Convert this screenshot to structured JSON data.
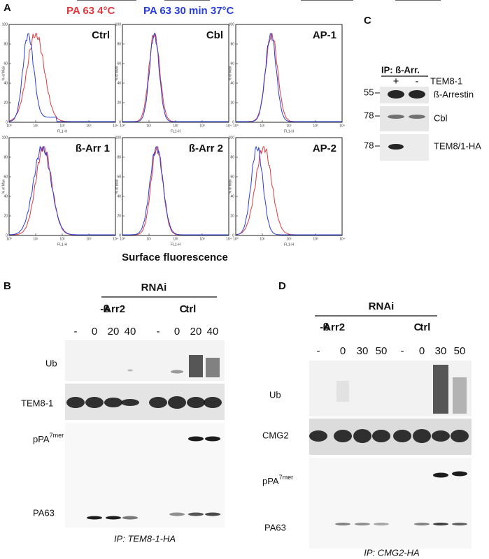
{
  "panelA": {
    "label": "A",
    "legend": [
      "PA 63 4°C",
      "PA 63 30 min 37°C"
    ],
    "legend_colors": [
      "#e0393e",
      "#2a3fd6"
    ],
    "y_axis_title": "% of Max",
    "x_axis_title": "FL1-H",
    "x_label": "Surface fluorescence",
    "yticks": [
      0,
      20,
      40,
      60,
      80,
      100
    ],
    "xticks": [
      {
        "value": 1,
        "label": "10⁰"
      },
      {
        "value": 10,
        "label": "10¹"
      },
      {
        "value": 100,
        "label": "10²"
      },
      {
        "value": 1000,
        "label": "10³"
      },
      {
        "value": 10000,
        "label": "10⁴"
      }
    ],
    "plots": [
      "Ctrl",
      "Cbl",
      "AP-1",
      "ß-Arr 1",
      "ß-Arr 2",
      "AP-2"
    ]
  },
  "panelB": {
    "label": "B",
    "rnai": "RNAi",
    "groups": [
      "ß-Arr2",
      "Ctrl"
    ],
    "lanes": [
      "-",
      0,
      20,
      40,
      "-",
      0,
      20,
      40
    ],
    "blots": [
      "Ub",
      "TEM8-1",
      {
        "main": "pPA",
        "sup": "7mer"
      },
      "PA63"
    ],
    "ip": "IP: TEM8-1-HA"
  },
  "panelC": {
    "label": "C",
    "ip": "IP: ß-Arr.",
    "lanes": [
      "+",
      "-"
    ],
    "lane_title": "TEM8-1",
    "mw": [
      55,
      78,
      78
    ],
    "blots": [
      "ß-Arrestin",
      "Cbl",
      "TEM8/1-HA"
    ]
  },
  "panelD": {
    "label": "D",
    "rnai": "RNAi",
    "groups": [
      "ß-Arr2",
      "Ctrl"
    ],
    "lanes": [
      "-",
      0,
      30,
      50,
      "-",
      0,
      30,
      50
    ],
    "blots": [
      "Ub",
      "CMG2",
      {
        "main": "pPA",
        "sup": "7mer"
      },
      "PA63"
    ],
    "ip": "IP: CMG2-HA"
  }
}
